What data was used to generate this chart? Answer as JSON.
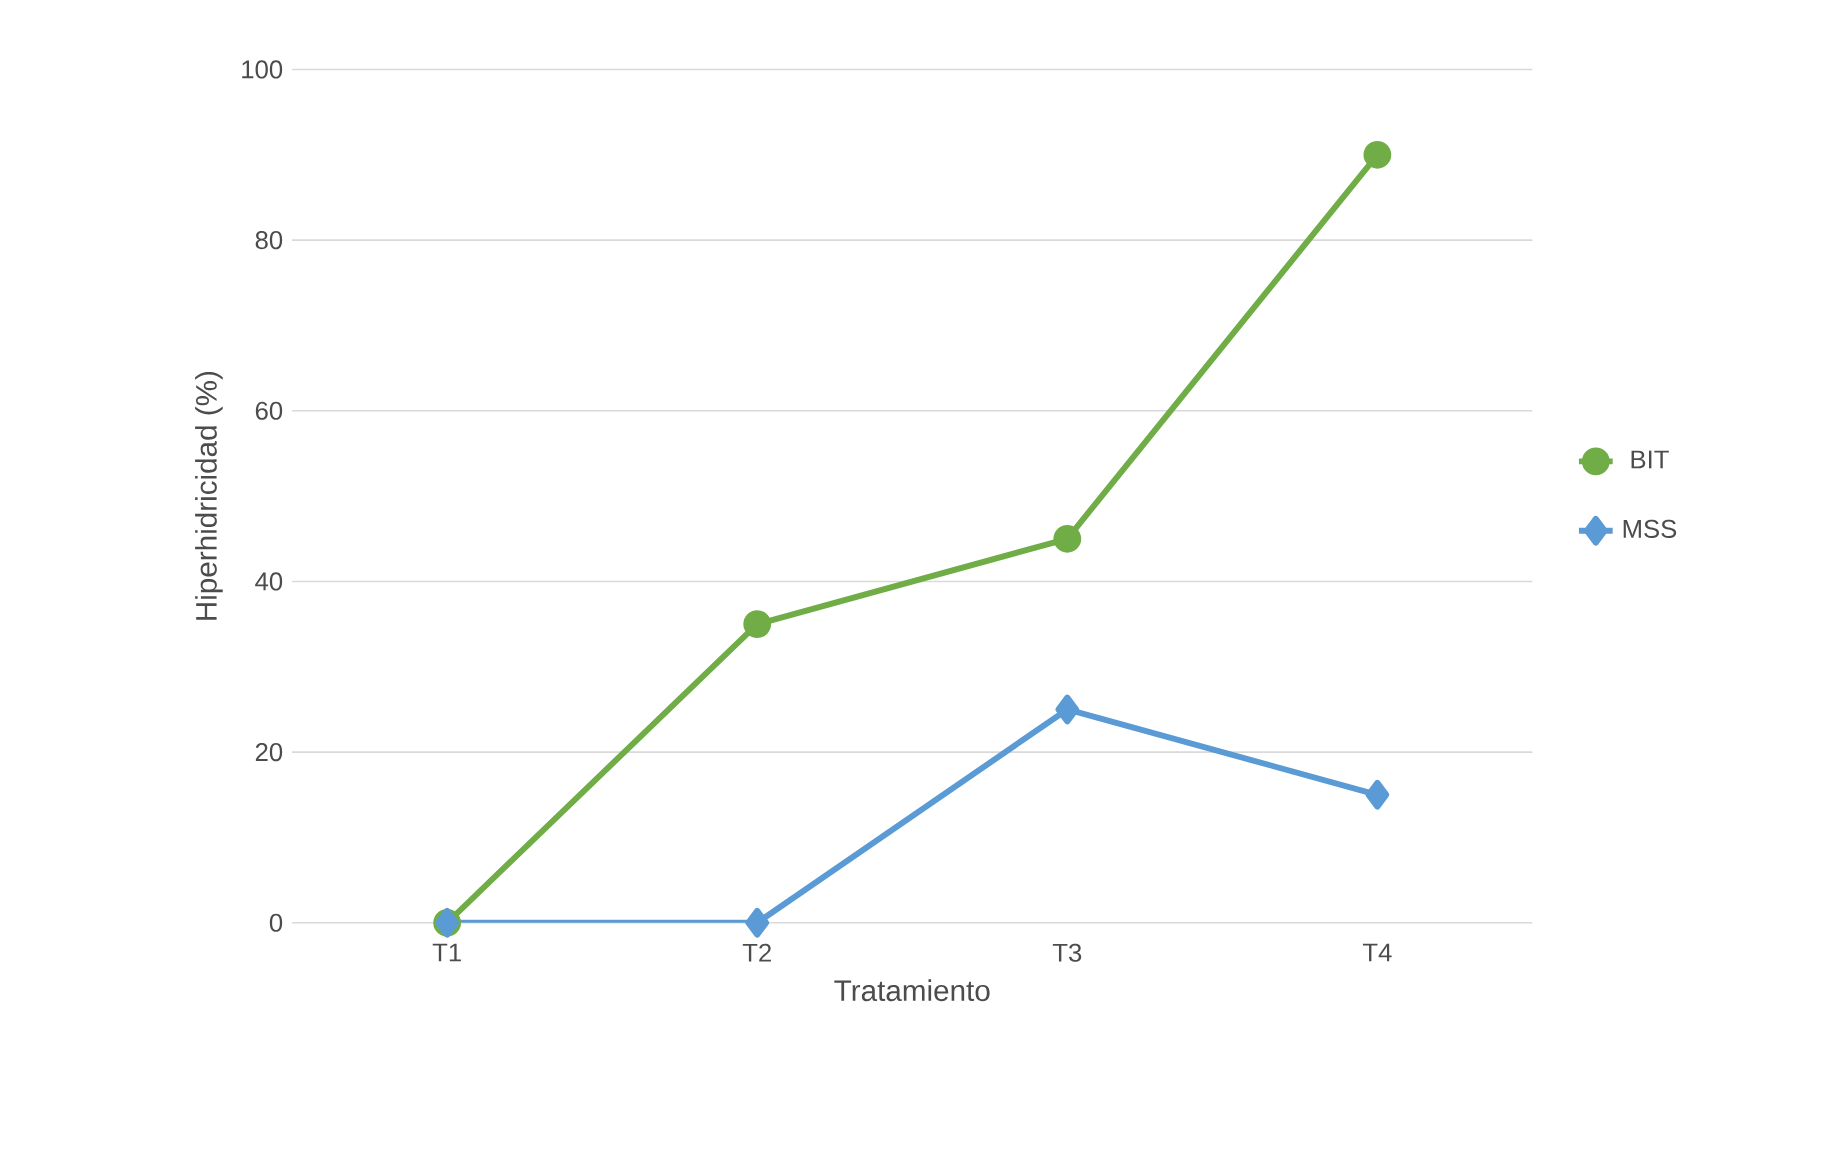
{
  "chart_data": {
    "type": "line",
    "xlabel": "Tratamiento",
    "ylabel": "Hiperhidricidad (%)",
    "categories": [
      "T1",
      "T2",
      "T3",
      "T4"
    ],
    "series": [
      {
        "name": "BIT",
        "color": "#70ad47",
        "marker": "circle",
        "values": [
          0,
          35,
          45,
          90
        ]
      },
      {
        "name": "MSS",
        "color": "#5b9bd5",
        "marker": "diamond",
        "values": [
          0,
          0,
          25,
          15
        ]
      }
    ],
    "ylim": [
      0,
      100
    ],
    "yticks": [
      0,
      20,
      40,
      60,
      80,
      100
    ],
    "grid": "y",
    "legend": "right"
  }
}
